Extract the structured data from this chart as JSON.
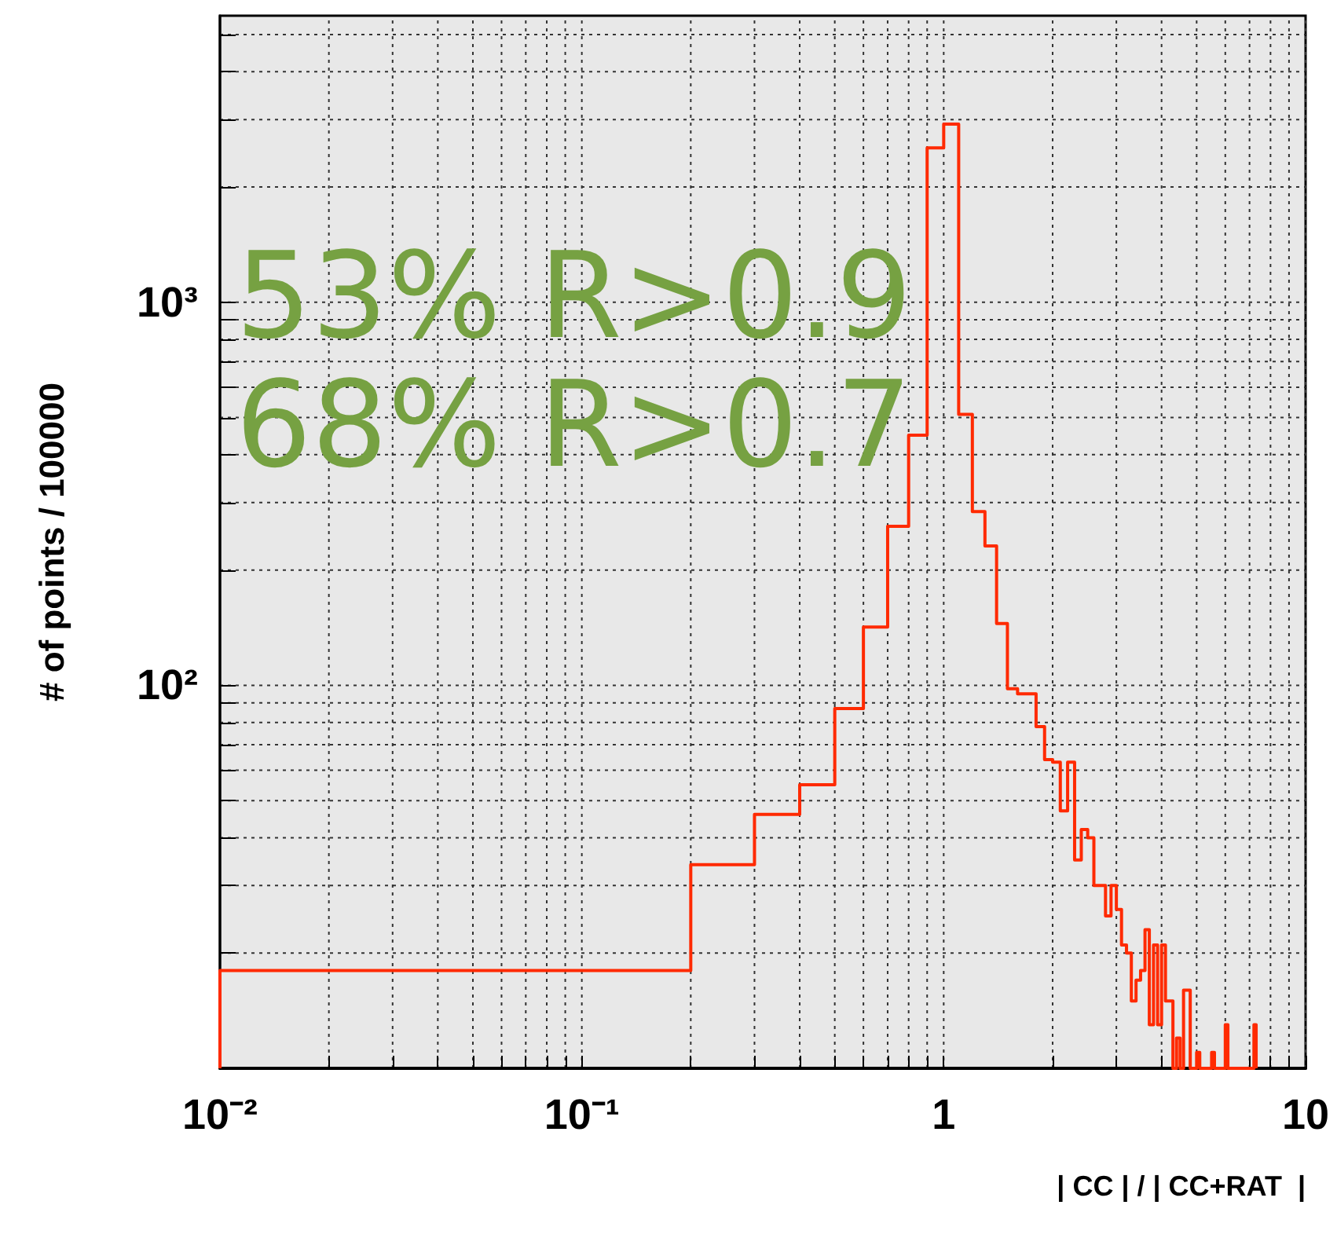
{
  "chart_data": {
    "type": "histogram",
    "ylabel": "# of points / 100000",
    "xlabel": "| CC | / | CC+RAT  |",
    "color": "#ff2a00",
    "log": "xy",
    "grid": true,
    "annotations": [
      "53% R>0.9",
      "68% R>0.7"
    ],
    "bins": [
      0.01,
      0.2,
      0.3,
      0.4,
      0.5,
      0.6,
      0.7,
      0.8,
      0.9,
      1.0,
      1.1,
      1.2,
      1.3,
      1.4,
      1.5,
      1.6,
      1.7,
      1.8,
      1.9,
      2.0,
      2.1,
      2.2,
      2.3,
      2.4,
      2.5,
      2.6,
      2.7,
      2.8,
      2.9,
      3.0,
      3.1,
      3.2,
      3.3,
      3.4,
      3.5,
      3.6,
      3.7,
      3.8,
      3.9,
      4.0,
      4.1,
      4.2,
      4.3,
      4.4,
      4.5,
      4.6,
      4.7,
      4.8,
      4.9,
      5.0,
      5.1,
      5.2,
      5.3,
      5.4,
      5.5,
      5.6,
      5.7,
      5.8,
      5.9,
      6.0,
      6.1,
      6.2,
      6.3,
      6.4,
      6.5,
      6.6,
      6.7,
      6.8,
      6.9,
      7.0,
      7.1,
      7.2,
      7.3
    ],
    "values": [
      18,
      34,
      46,
      55,
      87,
      142,
      260,
      450,
      2530,
      2920,
      510,
      284,
      231,
      145,
      98,
      95,
      95,
      78,
      64,
      63,
      47,
      63,
      35,
      42,
      40,
      30,
      30,
      25,
      30,
      26,
      21,
      20,
      15,
      17,
      18,
      23,
      13,
      21,
      13,
      21,
      15,
      15,
      null,
      12,
      null,
      16,
      16,
      null,
      null,
      11,
      null,
      null,
      null,
      null,
      11,
      null,
      null,
      null,
      null,
      13,
      null,
      null,
      null,
      null,
      null,
      null,
      null,
      null,
      null,
      null,
      null,
      13
    ],
    "xlim": [
      0.01,
      10
    ],
    "xticks": [
      {
        "value": 0.01,
        "label": "10⁻²"
      },
      {
        "value": 0.02,
        "label": null
      },
      {
        "value": 0.03,
        "label": null
      },
      {
        "value": 0.04,
        "label": null
      },
      {
        "value": 0.05,
        "label": null
      },
      {
        "value": 0.06,
        "label": null
      },
      {
        "value": 0.07,
        "label": null
      },
      {
        "value": 0.08,
        "label": null
      },
      {
        "value": 0.09,
        "label": null
      },
      {
        "value": 0.1,
        "label": "10⁻¹"
      },
      {
        "value": 0.2,
        "label": null
      },
      {
        "value": 0.3,
        "label": null
      },
      {
        "value": 0.4,
        "label": null
      },
      {
        "value": 0.5,
        "label": null
      },
      {
        "value": 0.6,
        "label": null
      },
      {
        "value": 0.7,
        "label": null
      },
      {
        "value": 0.8,
        "label": null
      },
      {
        "value": 0.9,
        "label": null
      },
      1,
      {
        "value": 2,
        "label": null
      },
      {
        "value": 3,
        "label": null
      },
      {
        "value": 4,
        "label": null
      },
      {
        "value": 5,
        "label": null
      },
      {
        "value": 6,
        "label": null
      },
      {
        "value": 7,
        "label": null
      },
      {
        "value": 8,
        "label": null
      },
      {
        "value": 9,
        "label": null
      },
      10
    ],
    "ylim": [
      10,
      5600
    ],
    "yticks": [
      {
        "value": 20,
        "label": null
      },
      {
        "value": 30,
        "label": null
      },
      {
        "value": 40,
        "label": null
      },
      {
        "value": 50,
        "label": null
      },
      {
        "value": 60,
        "label": null
      },
      {
        "value": 70,
        "label": null
      },
      {
        "value": 80,
        "label": null
      },
      {
        "value": 90,
        "label": null
      },
      {
        "value": 100,
        "label": "10²"
      },
      {
        "value": 200,
        "label": null
      },
      {
        "value": 300,
        "label": null
      },
      {
        "value": 400,
        "label": null
      },
      {
        "value": 500,
        "label": null
      },
      {
        "value": 600,
        "label": null
      },
      {
        "value": 700,
        "label": null
      },
      {
        "value": 800,
        "label": null
      },
      {
        "value": 900,
        "label": null
      },
      {
        "value": 1000,
        "label": "10³"
      },
      {
        "value": 2000,
        "label": null
      },
      {
        "value": 3000,
        "label": null
      },
      {
        "value": 4000,
        "label": null
      },
      {
        "value": 5000,
        "label": null
      }
    ]
  }
}
